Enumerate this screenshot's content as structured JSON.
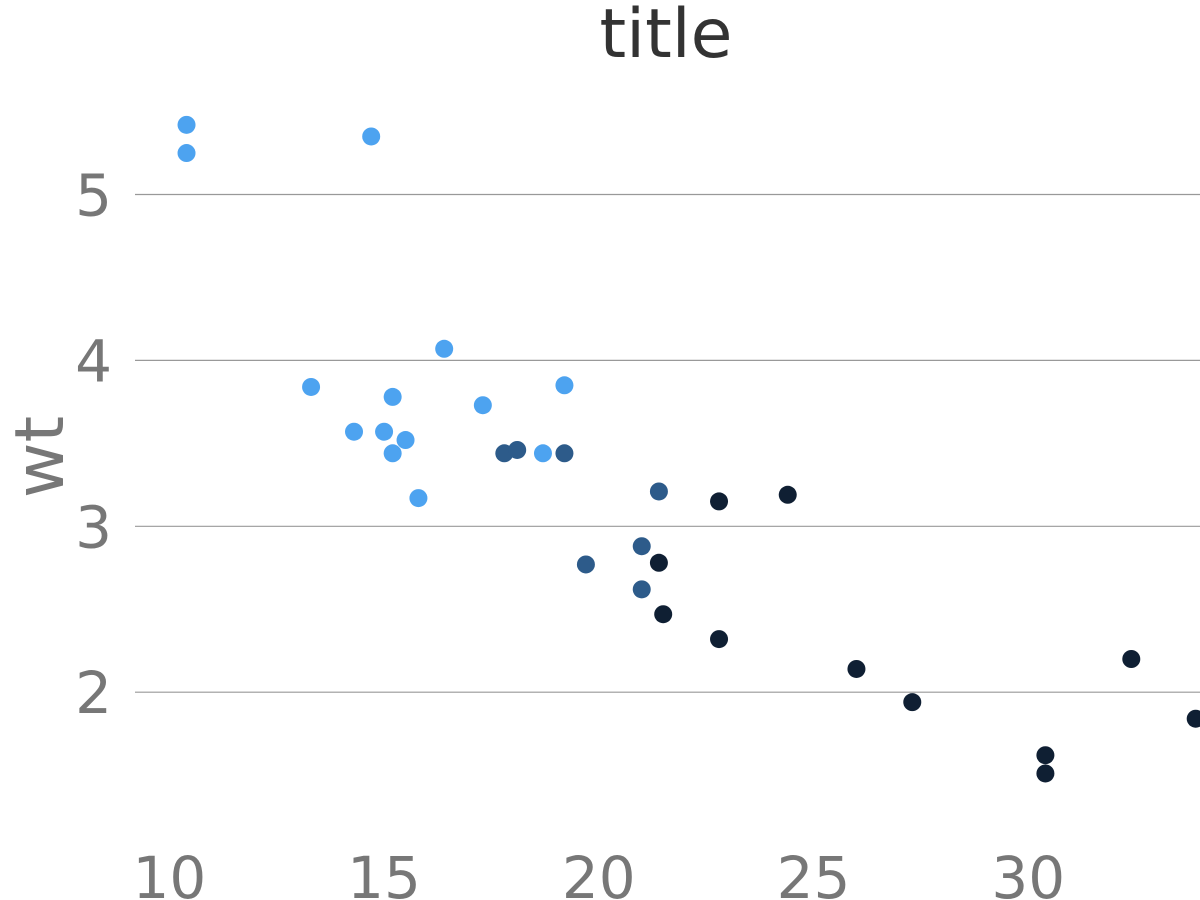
{
  "chart_data": {
    "type": "scatter",
    "title": "title",
    "xlabel": "",
    "ylabel": "wt",
    "xlim": [
      9.2,
      34.0
    ],
    "ylim": [
      1.35,
      5.6
    ],
    "xticks": [
      10,
      15,
      20,
      25,
      30
    ],
    "xtick_labels": [
      "10",
      "15",
      "20",
      "25",
      "30"
    ],
    "yticks": [
      2,
      3,
      4,
      5
    ],
    "ytick_labels": [
      "2",
      "3",
      "4",
      "5"
    ],
    "grid": "horizontal",
    "legend": "none",
    "series": [
      {
        "color": "#4da3f0",
        "x": [
          10.4,
          10.4,
          14.7,
          13.3,
          14.3,
          15.0,
          15.2,
          15.2,
          15.5,
          15.8,
          16.4,
          17.3,
          18.7,
          19.2
        ],
        "y": [
          5.42,
          5.25,
          5.35,
          3.84,
          3.57,
          3.57,
          3.78,
          3.44,
          3.52,
          3.17,
          4.07,
          3.73,
          3.44,
          3.85
        ]
      },
      {
        "color": "#2d5b8a",
        "x": [
          17.8,
          18.1,
          19.2,
          19.7,
          21.0,
          21.0,
          21.4
        ],
        "y": [
          3.44,
          3.46,
          3.44,
          2.77,
          2.62,
          2.88,
          3.21
        ]
      },
      {
        "color": "#0f1f33",
        "x": [
          21.4,
          21.5,
          22.8,
          22.8,
          24.4,
          26.0,
          27.3,
          30.4,
          30.4,
          32.4,
          33.9
        ],
        "y": [
          2.78,
          2.47,
          2.32,
          3.15,
          3.19,
          2.14,
          1.94,
          1.62,
          1.51,
          2.2,
          1.84
        ]
      }
    ]
  }
}
